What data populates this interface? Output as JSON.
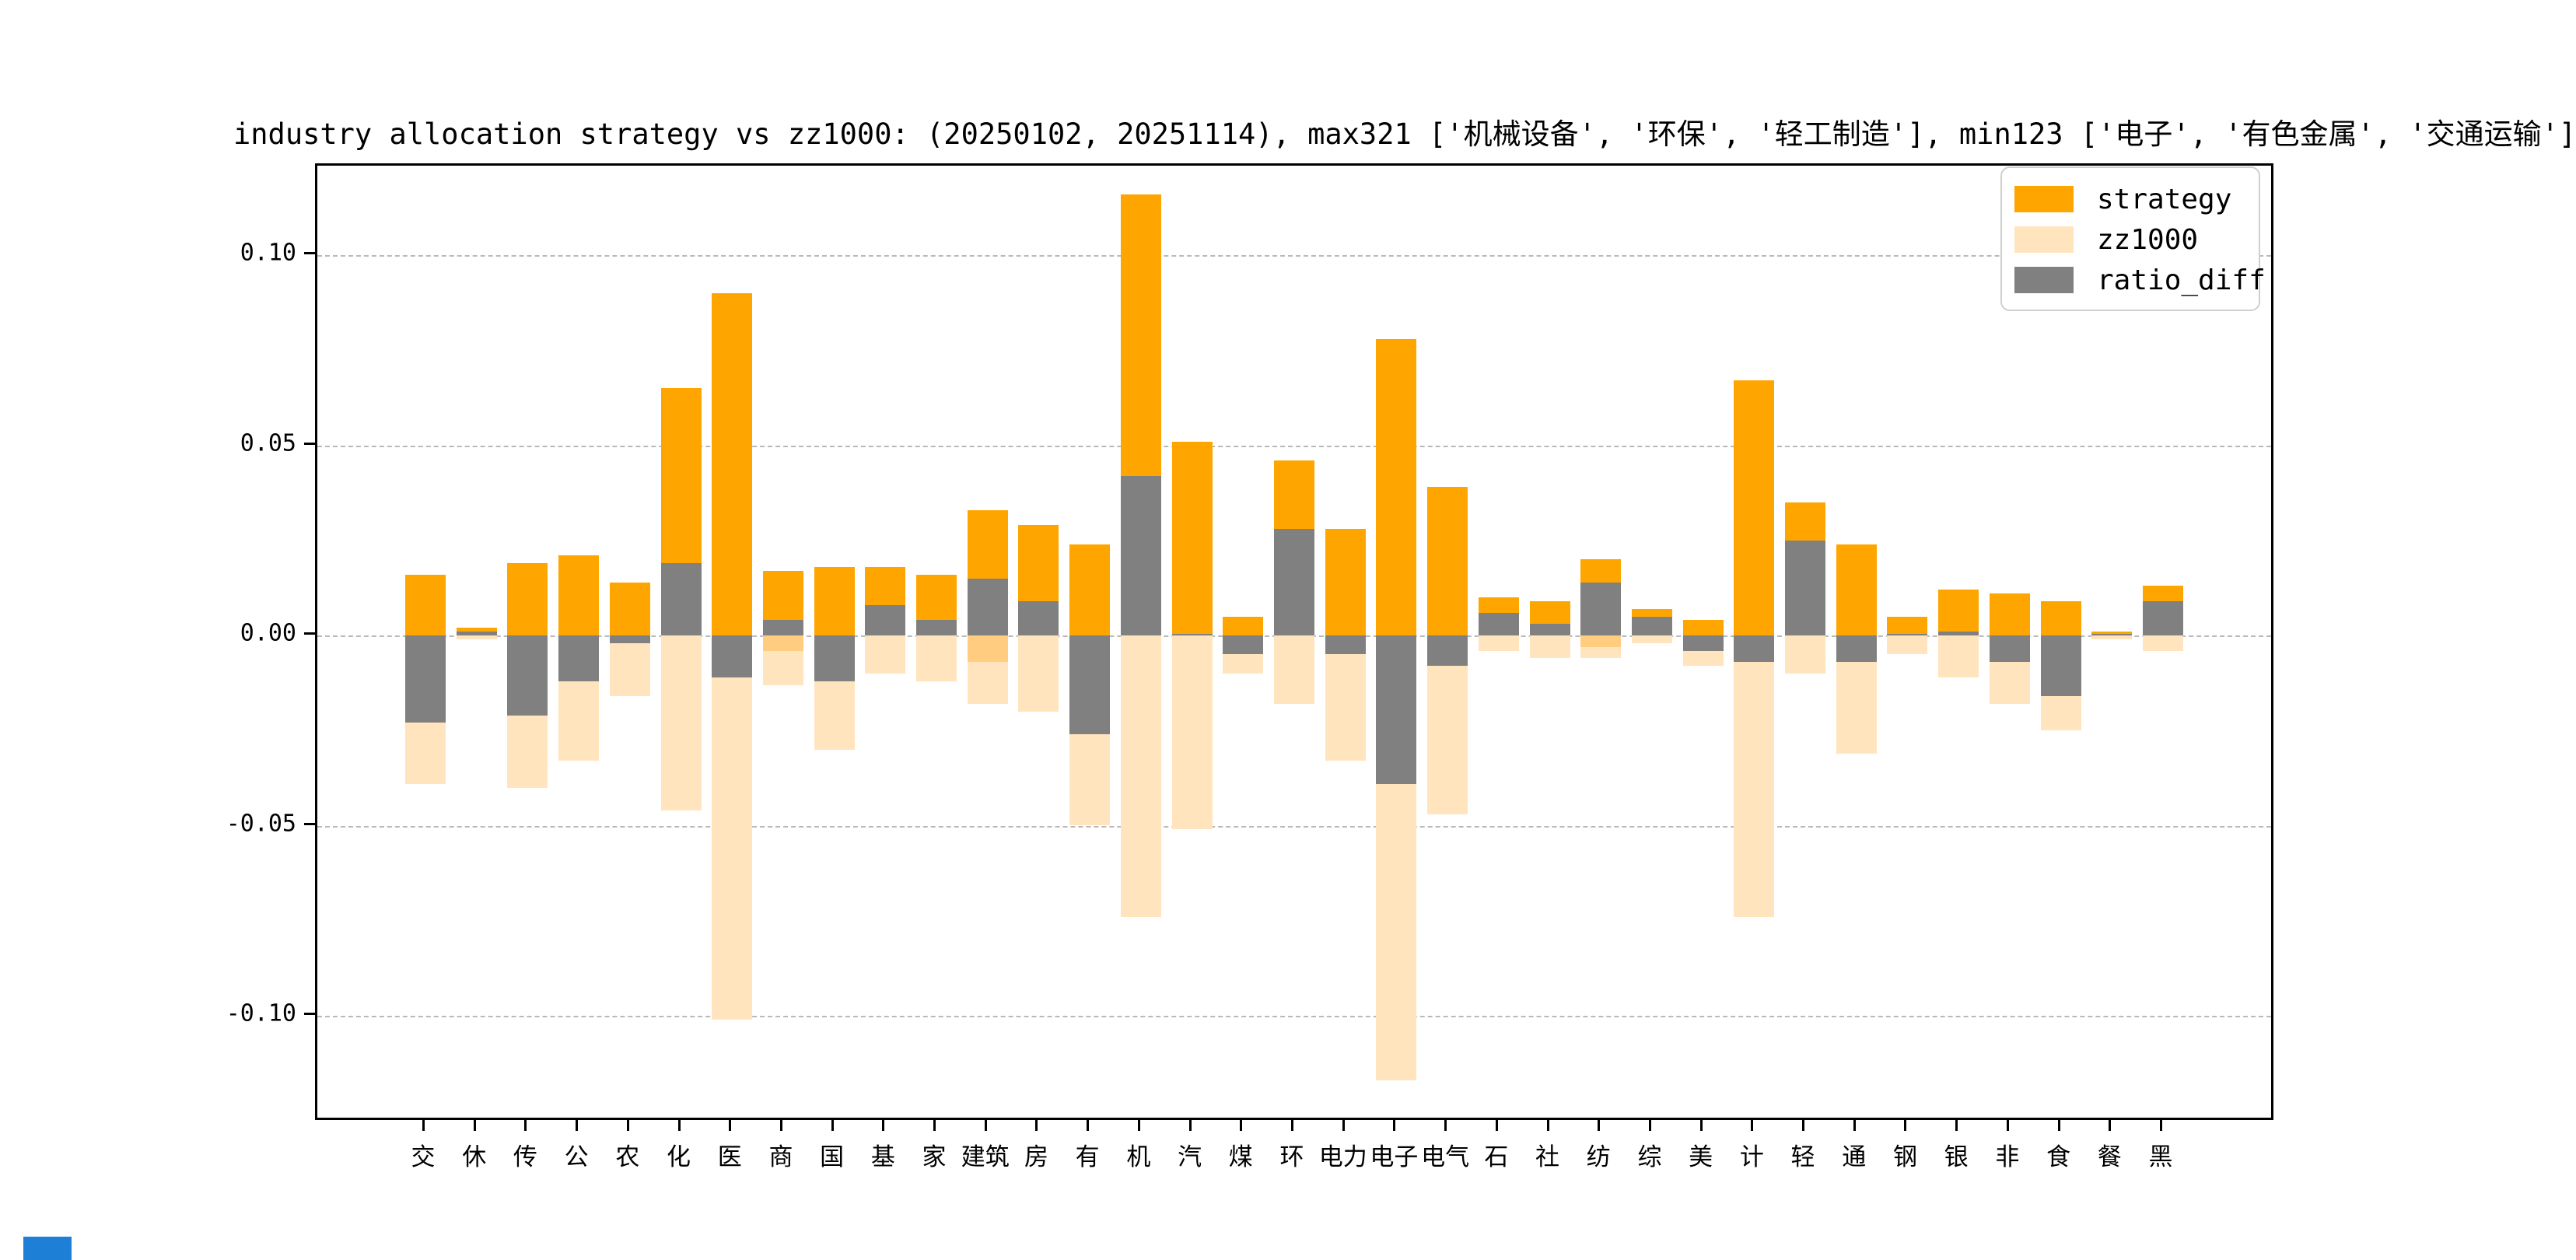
{
  "title": "industry allocation strategy vs zz1000: (20250102, 20251114), max321 ['机械设备', '环保', '轻工制造'], min123 ['电子', '有色金属', '交通运输']",
  "legend": {
    "items": [
      {
        "label": "strategy",
        "color": "#FFA500"
      },
      {
        "label": "zz1000",
        "color": "#FFE4BE"
      },
      {
        "label": "ratio_diff",
        "color": "#808080"
      }
    ]
  },
  "colors": {
    "strategy": "#FFA500",
    "zz1000": "#FFE4BE",
    "ratio_diff": "#808080",
    "overlap_band": "#FFCC80",
    "grid": "#b9b9b9",
    "artifact_blue": "#1e7fd6"
  },
  "chart_data": {
    "type": "bar",
    "title": "industry allocation strategy vs zz1000: (20250102, 20251114), max321 ['机械设备', '环保', '轻工制造'], min123 ['电子', '有色金属', '交通运输']",
    "xlabel": "",
    "ylabel": "",
    "grid": "horizontal-dashed",
    "legend_position": "upper right",
    "ylim": [
      -0.1285,
      0.1235
    ],
    "yticks": [
      0.1,
      0.05,
      0.0,
      -0.05,
      -0.1
    ],
    "ytick_labels": [
      "0.10",
      "0.05",
      "0.00",
      "-0.05",
      "-0.10"
    ],
    "categories": [
      "交",
      "休",
      "传",
      "公",
      "农",
      "化",
      "医",
      "商",
      "国",
      "基",
      "家",
      "建筑",
      "房",
      "有",
      "机",
      "汽",
      "煤",
      "环",
      "电力",
      "电子",
      "电气",
      "石",
      "社",
      "纺",
      "综",
      "美",
      "计",
      "轻",
      "通",
      "钢",
      "银",
      "非",
      "食",
      "餐",
      "黑"
    ],
    "series": [
      {
        "name": "strategy",
        "color": "#FFA500",
        "values": [
          0.016,
          0.002,
          0.019,
          0.021,
          0.014,
          0.065,
          0.09,
          0.017,
          0.018,
          0.018,
          0.016,
          0.033,
          0.029,
          0.024,
          0.116,
          0.051,
          0.005,
          0.046,
          0.028,
          0.078,
          0.039,
          0.01,
          0.009,
          0.02,
          0.007,
          0.004,
          0.067,
          0.035,
          0.024,
          0.005,
          0.012,
          0.011,
          0.009,
          0.001,
          0.013
        ]
      },
      {
        "name": "zz1000",
        "color": "#FFE4BE",
        "values": [
          0.039,
          0.001,
          0.04,
          0.033,
          0.016,
          0.046,
          0.101,
          0.013,
          0.03,
          0.01,
          0.012,
          0.018,
          0.02,
          0.05,
          0.074,
          0.051,
          0.01,
          0.018,
          0.033,
          0.117,
          0.047,
          0.004,
          0.006,
          0.006,
          0.002,
          0.008,
          0.074,
          0.01,
          0.031,
          0.005,
          0.011,
          0.018,
          0.025,
          0.001,
          0.004
        ]
      },
      {
        "name": "ratio_diff",
        "color": "#808080",
        "values": [
          -0.023,
          0.001,
          -0.021,
          -0.012,
          -0.002,
          0.019,
          -0.011,
          0.004,
          -0.012,
          0.008,
          0.004,
          0.015,
          0.009,
          -0.026,
          0.042,
          0.0005,
          -0.005,
          0.028,
          -0.005,
          -0.039,
          -0.008,
          0.006,
          0.003,
          0.014,
          0.005,
          -0.004,
          -0.007,
          0.025,
          -0.007,
          0.0005,
          0.001,
          -0.007,
          -0.016,
          0.0005,
          0.009
        ]
      }
    ],
    "overlap_band_below_zero": {
      "color": "#FFCC80",
      "values": [
        0,
        0,
        0,
        0,
        0,
        0,
        0,
        0.004,
        0,
        0,
        0,
        0.007,
        0,
        0,
        0,
        0,
        0,
        0,
        0,
        0,
        0,
        0,
        0,
        0.003,
        0,
        0,
        0,
        0,
        0,
        0,
        0,
        0,
        0,
        0,
        0
      ]
    }
  }
}
